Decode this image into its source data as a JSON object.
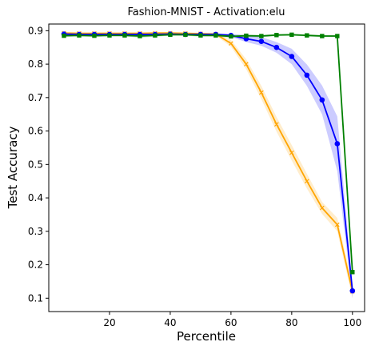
{
  "chart_data": {
    "type": "line",
    "title": "Fashion-MNIST - Activation:elu",
    "xlabel": "Percentile",
    "ylabel": "Test Accuracy",
    "xlim": [
      0,
      104
    ],
    "ylim": [
      0.06,
      0.92
    ],
    "xticks": [
      20,
      40,
      60,
      80,
      100
    ],
    "yticks": [
      0.1,
      0.2,
      0.3,
      0.4,
      0.5,
      0.6,
      0.7,
      0.8,
      0.9
    ],
    "grid": false,
    "legend": "none",
    "series": [
      {
        "color": "#ffa500",
        "marker": "x",
        "x": [
          5,
          10,
          15,
          20,
          25,
          30,
          35,
          40,
          45,
          50,
          55,
          60,
          65,
          70,
          75,
          80,
          85,
          90,
          95,
          100
        ],
        "y": [
          0.893,
          0.892,
          0.892,
          0.892,
          0.892,
          0.892,
          0.893,
          0.893,
          0.892,
          0.891,
          0.89,
          0.862,
          0.8,
          0.715,
          0.62,
          0.535,
          0.45,
          0.37,
          0.32,
          0.12
        ],
        "y_low": [
          0.89,
          0.889,
          0.889,
          0.889,
          0.889,
          0.889,
          0.89,
          0.89,
          0.889,
          0.888,
          0.886,
          0.852,
          0.785,
          0.695,
          0.598,
          0.512,
          0.428,
          0.352,
          0.3,
          0.1
        ],
        "y_high": [
          0.896,
          0.895,
          0.895,
          0.895,
          0.895,
          0.895,
          0.896,
          0.896,
          0.895,
          0.894,
          0.894,
          0.872,
          0.815,
          0.735,
          0.642,
          0.558,
          0.472,
          0.388,
          0.34,
          0.14
        ]
      },
      {
        "color": "#0000ff",
        "marker": "o",
        "x": [
          5,
          10,
          15,
          20,
          25,
          30,
          35,
          40,
          45,
          50,
          55,
          60,
          65,
          70,
          75,
          80,
          85,
          90,
          95,
          100
        ],
        "y": [
          0.89,
          0.889,
          0.889,
          0.889,
          0.889,
          0.889,
          0.889,
          0.89,
          0.889,
          0.889,
          0.889,
          0.886,
          0.876,
          0.868,
          0.85,
          0.823,
          0.767,
          0.693,
          0.562,
          0.122
        ],
        "y_low": [
          0.887,
          0.886,
          0.886,
          0.886,
          0.886,
          0.886,
          0.886,
          0.887,
          0.886,
          0.886,
          0.886,
          0.881,
          0.866,
          0.855,
          0.834,
          0.8,
          0.735,
          0.65,
          0.48,
          0.1
        ],
        "y_high": [
          0.893,
          0.892,
          0.892,
          0.892,
          0.892,
          0.892,
          0.892,
          0.893,
          0.892,
          0.892,
          0.892,
          0.891,
          0.886,
          0.881,
          0.866,
          0.846,
          0.799,
          0.736,
          0.644,
          0.144
        ]
      },
      {
        "color": "#008000",
        "marker": "s",
        "x": [
          5,
          10,
          15,
          20,
          25,
          30,
          35,
          40,
          45,
          50,
          55,
          60,
          65,
          70,
          75,
          80,
          85,
          90,
          95,
          100
        ],
        "y": [
          0.885,
          0.886,
          0.885,
          0.886,
          0.886,
          0.884,
          0.886,
          0.888,
          0.888,
          0.886,
          0.886,
          0.883,
          0.885,
          0.884,
          0.887,
          0.888,
          0.886,
          0.884,
          0.884,
          0.178
        ],
        "y_low": [
          0.881,
          0.883,
          0.881,
          0.883,
          0.883,
          0.879,
          0.882,
          0.885,
          0.885,
          0.882,
          0.882,
          0.879,
          0.881,
          0.88,
          0.884,
          0.885,
          0.883,
          0.881,
          0.881,
          0.17
        ],
        "y_high": [
          0.889,
          0.889,
          0.889,
          0.889,
          0.889,
          0.889,
          0.89,
          0.891,
          0.891,
          0.89,
          0.89,
          0.887,
          0.889,
          0.888,
          0.89,
          0.891,
          0.889,
          0.887,
          0.887,
          0.186
        ]
      }
    ]
  }
}
